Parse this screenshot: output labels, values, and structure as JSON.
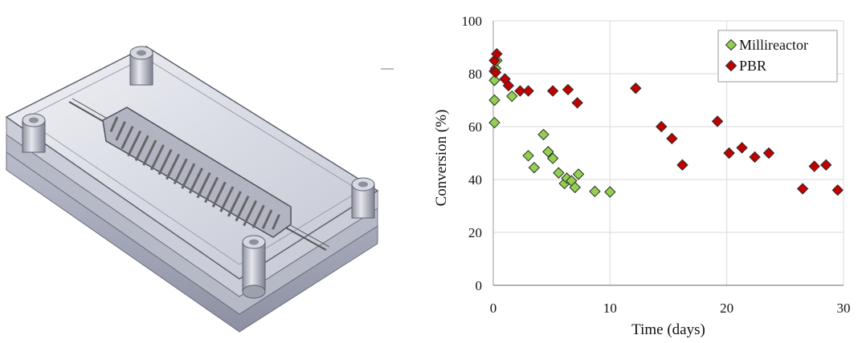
{
  "chart_data": {
    "type": "scatter",
    "xlabel": "Time (days)",
    "ylabel": "Conversion  (%)",
    "xlim": [
      0,
      30
    ],
    "ylim": [
      0,
      100
    ],
    "xticks": [
      0,
      10,
      20,
      30
    ],
    "yticks": [
      0,
      20,
      40,
      60,
      80,
      100
    ],
    "grid": "vertical and horizontal gridlines",
    "legend_position": "top-right",
    "series": [
      {
        "name": "Millireactor",
        "color": "#92d050",
        "marker": "diamond",
        "points": [
          [
            0.1,
            61.5
          ],
          [
            0.1,
            70
          ],
          [
            0.1,
            77.5
          ],
          [
            0.2,
            82
          ],
          [
            0.3,
            85
          ],
          [
            1.6,
            71.5
          ],
          [
            3.0,
            49
          ],
          [
            3.5,
            44.5
          ],
          [
            4.3,
            57
          ],
          [
            4.7,
            50.5
          ],
          [
            5.1,
            48
          ],
          [
            5.6,
            42.5
          ],
          [
            6.1,
            38.5
          ],
          [
            6.3,
            40.5
          ],
          [
            6.7,
            39.5
          ],
          [
            7.0,
            37
          ],
          [
            7.3,
            42
          ],
          [
            8.7,
            35.5
          ],
          [
            10.0,
            35.3
          ]
        ]
      },
      {
        "name": "PBR",
        "color": "#c00000",
        "marker": "diamond",
        "points": [
          [
            0.1,
            81
          ],
          [
            0.1,
            85
          ],
          [
            0.2,
            80.5
          ],
          [
            0.3,
            87.5
          ],
          [
            1.0,
            78
          ],
          [
            1.3,
            75.5
          ],
          [
            2.3,
            73.5
          ],
          [
            3.0,
            73.5
          ],
          [
            5.1,
            73.5
          ],
          [
            6.4,
            74
          ],
          [
            7.2,
            69
          ],
          [
            12.2,
            74.5
          ],
          [
            14.4,
            60
          ],
          [
            15.3,
            55.5
          ],
          [
            16.2,
            45.5
          ],
          [
            19.2,
            62
          ],
          [
            20.2,
            50
          ],
          [
            21.3,
            52
          ],
          [
            22.4,
            48.5
          ],
          [
            23.6,
            50
          ],
          [
            26.5,
            36.5
          ],
          [
            27.5,
            45
          ],
          [
            28.5,
            45.5
          ],
          [
            29.5,
            36
          ]
        ]
      }
    ]
  }
}
